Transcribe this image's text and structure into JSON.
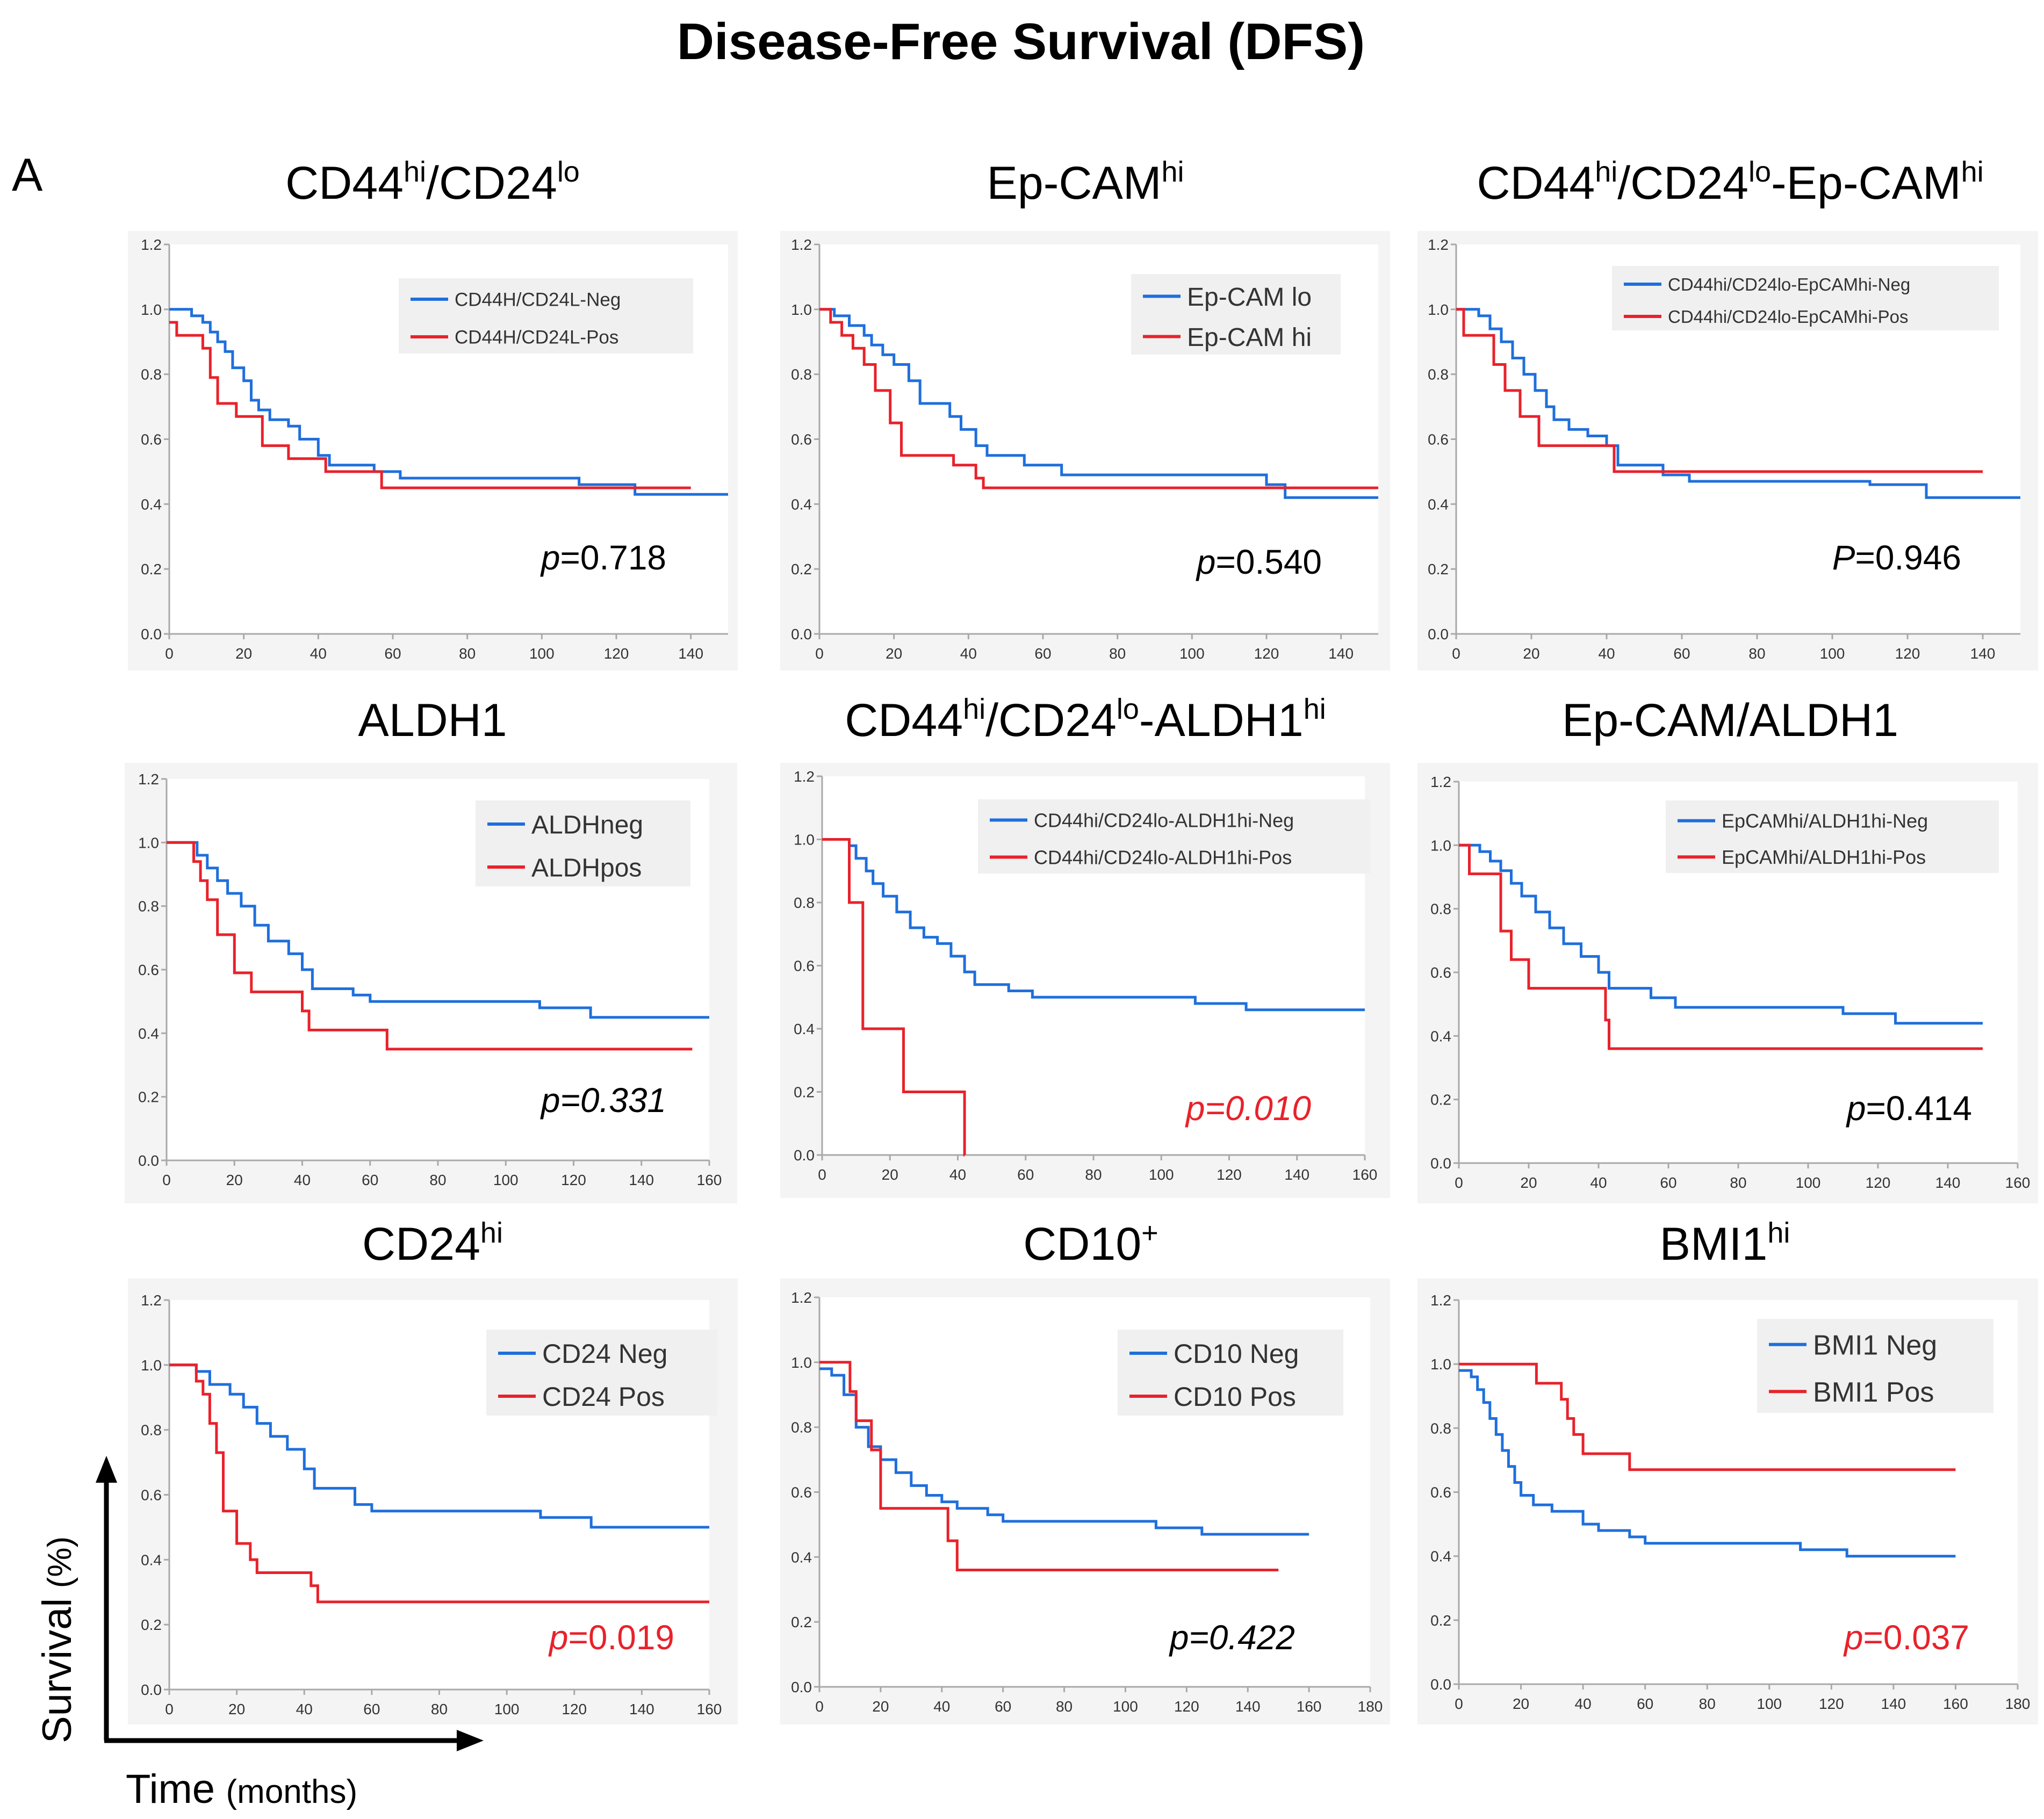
{
  "figure": {
    "title": "Disease-Free Survival (DFS)",
    "panel_label": "A",
    "y_caption": "Survival",
    "y_caption_unit": "(%)",
    "x_caption": "Time",
    "x_caption_unit": "(months)"
  },
  "colors": {
    "neg": "#1f6fdc",
    "pos": "#e8222b",
    "sig": "#e8222b",
    "text": "#000000"
  },
  "chart_data": [
    {
      "type": "line",
      "title_main": "CD44",
      "title_sup1": "hi",
      "title_mid": "/CD24",
      "title_sup2": "lo",
      "title_tail": "",
      "title_sup3": "",
      "xlim": [
        0,
        150
      ],
      "xticks": [
        0,
        20,
        40,
        60,
        80,
        100,
        120,
        140
      ],
      "ylim": [
        0,
        1.2
      ],
      "yticks": [
        "0.0",
        "0.2",
        "0.4",
        "0.6",
        "0.8",
        "1.0",
        "1.2"
      ],
      "legend": [
        "CD44H/CD24L-Neg",
        "CD44H/CD24L-Pos"
      ],
      "p_prefix": "p",
      "p_value": "=0.718",
      "p_italic_all": false,
      "p_significant": false,
      "series": [
        {
          "name": "CD44H/CD24L-Neg",
          "x": [
            0,
            6,
            9,
            11,
            13,
            15,
            17,
            20,
            22,
            24,
            27,
            32,
            35,
            40,
            43,
            55,
            62,
            110,
            125,
            150
          ],
          "values": [
            1.0,
            0.98,
            0.96,
            0.93,
            0.9,
            0.87,
            0.82,
            0.78,
            0.72,
            0.69,
            0.66,
            0.64,
            0.6,
            0.55,
            0.52,
            0.5,
            0.48,
            0.46,
            0.43,
            0.43
          ]
        },
        {
          "name": "CD44H/CD24L-Pos",
          "x": [
            0,
            2,
            9,
            11,
            13,
            18,
            25,
            32,
            42,
            57,
            140
          ],
          "values": [
            0.96,
            0.92,
            0.88,
            0.79,
            0.71,
            0.67,
            0.58,
            0.54,
            0.5,
            0.45,
            0.45
          ]
        }
      ]
    },
    {
      "type": "line",
      "title_main": "Ep-CAM",
      "title_sup1": "hi",
      "title_mid": "",
      "title_sup2": "",
      "title_tail": "",
      "title_sup3": "",
      "xlim": [
        0,
        150
      ],
      "xticks": [
        0,
        20,
        40,
        60,
        80,
        100,
        120,
        140
      ],
      "ylim": [
        0,
        1.2
      ],
      "yticks": [
        "0.0",
        "0.2",
        "0.4",
        "0.6",
        "0.8",
        "1.0",
        "1.2"
      ],
      "legend": [
        "Ep-CAM lo",
        "Ep-CAM hi"
      ],
      "p_prefix": "p",
      "p_value": "=0.540",
      "p_italic_all": false,
      "p_significant": false,
      "series": [
        {
          "name": "Ep-CAM lo",
          "x": [
            0,
            4,
            8,
            12,
            14,
            17,
            20,
            24,
            27,
            35,
            38,
            42,
            45,
            55,
            65,
            120,
            125,
            150
          ],
          "values": [
            1.0,
            0.98,
            0.95,
            0.92,
            0.89,
            0.86,
            0.83,
            0.78,
            0.71,
            0.67,
            0.63,
            0.58,
            0.55,
            0.52,
            0.49,
            0.46,
            0.42,
            0.42
          ]
        },
        {
          "name": "Ep-CAM hi",
          "x": [
            0,
            3,
            6,
            9,
            12,
            15,
            19,
            22,
            28,
            36,
            42,
            44,
            150
          ],
          "values": [
            1.0,
            0.96,
            0.92,
            0.88,
            0.83,
            0.75,
            0.65,
            0.55,
            0.55,
            0.52,
            0.48,
            0.45,
            0.45
          ]
        }
      ]
    },
    {
      "type": "line",
      "title_main": "CD44",
      "title_sup1": "hi",
      "title_mid": "/CD24",
      "title_sup2": "lo",
      "title_tail": "-Ep-CAM",
      "title_sup3": "hi",
      "xlim": [
        0,
        150
      ],
      "xticks": [
        0,
        20,
        40,
        60,
        80,
        100,
        120,
        140
      ],
      "ylim": [
        0,
        1.2
      ],
      "yticks": [
        "0.0",
        "0.2",
        "0.4",
        "0.6",
        "0.8",
        "1.0",
        "1.2"
      ],
      "legend": [
        "CD44hi/CD24lo-EpCAMhi-Neg",
        "CD44hi/CD24lo-EpCAMhi-Pos"
      ],
      "p_prefix": "P",
      "p_value": "=0.946",
      "p_italic_all": false,
      "p_significant": false,
      "series": [
        {
          "name": "CD44hi/CD24lo-EpCAMhi-Neg",
          "x": [
            0,
            6,
            9,
            12,
            15,
            18,
            21,
            24,
            26,
            30,
            35,
            40,
            43,
            55,
            62,
            110,
            125,
            150
          ],
          "values": [
            1.0,
            0.98,
            0.94,
            0.9,
            0.85,
            0.8,
            0.75,
            0.7,
            0.66,
            0.63,
            0.61,
            0.58,
            0.52,
            0.49,
            0.47,
            0.46,
            0.42,
            0.42
          ]
        },
        {
          "name": "CD44hi/CD24lo-EpCAMhi-Pos",
          "x": [
            0,
            2,
            10,
            13,
            17,
            22,
            40,
            42,
            140
          ],
          "values": [
            1.0,
            0.92,
            0.83,
            0.75,
            0.67,
            0.58,
            0.58,
            0.5,
            0.5
          ]
        }
      ]
    },
    {
      "type": "line",
      "title_main": "ALDH1",
      "title_sup1": "",
      "title_mid": "",
      "title_sup2": "",
      "title_tail": "",
      "title_sup3": "",
      "xlim": [
        0,
        160
      ],
      "xticks": [
        0,
        20,
        40,
        60,
        80,
        100,
        120,
        140,
        160
      ],
      "ylim": [
        0,
        1.2
      ],
      "yticks": [
        "0.0",
        "0.2",
        "0.4",
        "0.6",
        "0.8",
        "1.0",
        "1.2"
      ],
      "legend": [
        "ALDHneg",
        "ALDHpos"
      ],
      "p_prefix": "p",
      "p_value": "=0.331",
      "p_italic_all": true,
      "p_significant": false,
      "series": [
        {
          "name": "ALDHneg",
          "x": [
            0,
            9,
            12,
            15,
            18,
            22,
            26,
            30,
            36,
            40,
            43,
            55,
            60,
            110,
            125,
            160
          ],
          "values": [
            1.0,
            0.96,
            0.92,
            0.88,
            0.84,
            0.8,
            0.74,
            0.69,
            0.65,
            0.6,
            0.54,
            0.52,
            0.5,
            0.48,
            0.45,
            0.45
          ]
        },
        {
          "name": "ALDHpos",
          "x": [
            0,
            8,
            10,
            12,
            15,
            20,
            25,
            40,
            42,
            60,
            65,
            155
          ],
          "values": [
            1.0,
            0.94,
            0.88,
            0.82,
            0.71,
            0.59,
            0.53,
            0.47,
            0.41,
            0.41,
            0.35,
            0.35
          ]
        }
      ]
    },
    {
      "type": "line",
      "title_main": "CD44",
      "title_sup1": "hi",
      "title_mid": "/CD24",
      "title_sup2": "lo",
      "title_tail": "-ALDH1",
      "title_sup3": "hi",
      "xlim": [
        0,
        160
      ],
      "xticks": [
        0,
        20,
        40,
        60,
        80,
        100,
        120,
        140,
        160
      ],
      "ylim": [
        0,
        1.2
      ],
      "yticks": [
        "0.0",
        "0.2",
        "0.4",
        "0.6",
        "0.8",
        "1.0",
        "1.2"
      ],
      "legend": [
        "CD44hi/CD24lo-ALDH1hi-Neg",
        "CD44hi/CD24lo-ALDH1hi-Pos"
      ],
      "p_prefix": "p",
      "p_value": "=0.010",
      "p_italic_all": true,
      "p_significant": true,
      "series": [
        {
          "name": "CD44hi/CD24lo-ALDH1hi-Neg",
          "x": [
            0,
            8,
            10,
            13,
            15,
            18,
            22,
            26,
            30,
            34,
            38,
            42,
            45,
            55,
            62,
            110,
            125,
            160
          ],
          "values": [
            1.0,
            0.98,
            0.94,
            0.9,
            0.86,
            0.82,
            0.77,
            0.72,
            0.69,
            0.67,
            0.63,
            0.58,
            0.54,
            0.52,
            0.5,
            0.48,
            0.46,
            0.46
          ]
        },
        {
          "name": "CD44hi/CD24lo-ALDH1hi-Pos",
          "x": [
            0,
            8,
            12,
            24,
            42,
            42.01
          ],
          "values": [
            1.0,
            0.8,
            0.4,
            0.2,
            0.0,
            0.0
          ]
        }
      ]
    },
    {
      "type": "line",
      "title_main": "Ep-CAM/ALDH1",
      "title_sup1": "",
      "title_mid": "",
      "title_sup2": "",
      "title_tail": "",
      "title_sup3": "",
      "xlim": [
        0,
        160
      ],
      "xticks": [
        0,
        20,
        40,
        60,
        80,
        100,
        120,
        140,
        160
      ],
      "ylim": [
        0,
        1.2
      ],
      "yticks": [
        "0.0",
        "0.2",
        "0.4",
        "0.6",
        "0.8",
        "1.0",
        "1.2"
      ],
      "legend": [
        "EpCAMhi/ALDH1hi-Neg",
        "EpCAMhi/ALDH1hi-Pos"
      ],
      "p_prefix": "p",
      "p_value": "=0.414",
      "p_italic_all": false,
      "p_significant": false,
      "series": [
        {
          "name": "EpCAMhi/ALDH1hi-Neg",
          "x": [
            0,
            6,
            9,
            12,
            15,
            18,
            22,
            26,
            30,
            35,
            40,
            43,
            55,
            62,
            110,
            125,
            150
          ],
          "values": [
            1.0,
            0.98,
            0.95,
            0.92,
            0.88,
            0.84,
            0.79,
            0.74,
            0.69,
            0.65,
            0.6,
            0.55,
            0.52,
            0.49,
            0.47,
            0.44,
            0.44
          ]
        },
        {
          "name": "EpCAMhi/ALDH1hi-Pos",
          "x": [
            0,
            3,
            12,
            15,
            20,
            42,
            43,
            150
          ],
          "values": [
            1.0,
            0.91,
            0.73,
            0.64,
            0.55,
            0.45,
            0.36,
            0.36
          ]
        }
      ]
    },
    {
      "type": "line",
      "title_main": "CD24",
      "title_sup1": "hi",
      "title_mid": "",
      "title_sup2": "",
      "title_tail": "",
      "title_sup3": "",
      "xlim": [
        0,
        160
      ],
      "xticks": [
        0,
        20,
        40,
        60,
        80,
        100,
        120,
        140,
        160
      ],
      "ylim": [
        0,
        1.2
      ],
      "yticks": [
        "0.0",
        "0.2",
        "0.4",
        "0.6",
        "0.8",
        "1.0",
        "1.2"
      ],
      "legend": [
        "CD24 Neg",
        "CD24 Pos"
      ],
      "p_prefix": "p",
      "p_value": "=0.019",
      "p_italic_all": false,
      "p_significant": true,
      "series": [
        {
          "name": "CD24 Neg",
          "x": [
            0,
            8,
            12,
            18,
            22,
            26,
            30,
            35,
            40,
            43,
            55,
            60,
            110,
            125,
            160
          ],
          "values": [
            1.0,
            0.98,
            0.94,
            0.91,
            0.87,
            0.82,
            0.78,
            0.74,
            0.68,
            0.62,
            0.57,
            0.55,
            0.53,
            0.5,
            0.5
          ]
        },
        {
          "name": "CD24 Pos",
          "x": [
            0,
            8,
            10,
            12,
            14,
            16,
            20,
            24,
            26,
            42,
            44,
            160
          ],
          "values": [
            1.0,
            0.95,
            0.91,
            0.82,
            0.73,
            0.55,
            0.45,
            0.4,
            0.36,
            0.32,
            0.27,
            0.27
          ]
        }
      ]
    },
    {
      "type": "line",
      "title_main": "CD10",
      "title_sup1": "+",
      "title_mid": "",
      "title_sup2": "",
      "title_tail": "",
      "title_sup3": "",
      "xlim": [
        0,
        180
      ],
      "xticks": [
        0,
        20,
        40,
        60,
        80,
        100,
        120,
        140,
        160,
        180
      ],
      "ylim": [
        0,
        1.2
      ],
      "yticks": [
        "0.0",
        "0.2",
        "0.4",
        "0.6",
        "0.8",
        "1.0",
        "1.2"
      ],
      "legend": [
        "CD10 Neg",
        "CD10 Pos"
      ],
      "p_prefix": "p",
      "p_value": "=0.422",
      "p_italic_all": true,
      "p_significant": false,
      "series": [
        {
          "name": "CD10 Neg",
          "x": [
            0,
            4,
            8,
            12,
            16,
            20,
            25,
            30,
            35,
            40,
            45,
            55,
            60,
            110,
            125,
            160
          ],
          "values": [
            0.98,
            0.96,
            0.9,
            0.8,
            0.74,
            0.7,
            0.66,
            0.62,
            0.59,
            0.57,
            0.55,
            0.53,
            0.51,
            0.49,
            0.47,
            0.47
          ]
        },
        {
          "name": "CD10 Pos",
          "x": [
            0,
            10,
            12,
            17,
            20,
            42,
            45,
            150
          ],
          "values": [
            1.0,
            0.91,
            0.82,
            0.73,
            0.55,
            0.45,
            0.36,
            0.36
          ]
        }
      ]
    },
    {
      "type": "line",
      "title_main": "BMI1",
      "title_sup1": "hi",
      "title_mid": "",
      "title_sup2": "",
      "title_tail": "",
      "title_sup3": "",
      "xlim": [
        0,
        180
      ],
      "xticks": [
        0,
        20,
        40,
        60,
        80,
        100,
        120,
        140,
        160,
        180
      ],
      "ylim": [
        0,
        1.2
      ],
      "yticks": [
        "0.0",
        "0.2",
        "0.4",
        "0.6",
        "0.8",
        "1.0",
        "1.2"
      ],
      "legend": [
        "BMI1 Neg",
        "BMI1 Pos"
      ],
      "p_prefix": "p",
      "p_value": "=0.037",
      "p_italic_all": false,
      "p_significant": true,
      "series": [
        {
          "name": "BMI1 Neg",
          "x": [
            0,
            4,
            6,
            8,
            10,
            12,
            14,
            16,
            18,
            20,
            24,
            30,
            40,
            45,
            55,
            60,
            75,
            110,
            125,
            160
          ],
          "values": [
            0.98,
            0.96,
            0.92,
            0.88,
            0.83,
            0.78,
            0.73,
            0.68,
            0.63,
            0.59,
            0.56,
            0.54,
            0.5,
            0.48,
            0.46,
            0.44,
            0.44,
            0.42,
            0.4,
            0.4
          ]
        },
        {
          "name": "BMI1 Pos",
          "x": [
            0,
            25,
            33,
            35,
            37,
            40,
            55,
            160
          ],
          "values": [
            1.0,
            0.94,
            0.89,
            0.83,
            0.78,
            0.72,
            0.67,
            0.67
          ]
        }
      ]
    }
  ]
}
